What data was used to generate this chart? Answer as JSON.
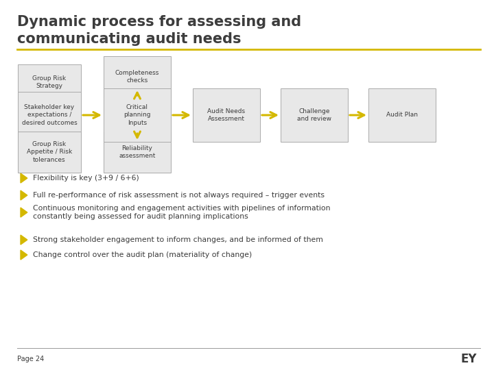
{
  "title_line1": "Dynamic process for assessing and",
  "title_line2": "communicating audit needs",
  "title_color": "#3d3d3d",
  "title_fontsize": 15,
  "title_line_color": "#d4b800",
  "background_color": "#ffffff",
  "box_bg": "#e8e8e8",
  "box_border": "#aaaaaa",
  "arrow_color": "#d4b800",
  "text_color": "#3a3a3a",
  "bullet_color": "#d4b800",
  "left_boxes": [
    {
      "label": "Group Risk\nStrategy"
    },
    {
      "label": "Stakeholder key\nexpectations /\ndesired outcomes"
    },
    {
      "label": "Group Risk\nAppetite / Risk\ntolerances"
    }
  ],
  "top_box_label": "Completeness\nchecks",
  "bottom_box_label": "Reliability\nassessment",
  "main_boxes": [
    {
      "label": "Critical\nplanning\nInputs"
    },
    {
      "label": "Audit Needs\nAssessment"
    },
    {
      "label": "Challenge\nand review"
    },
    {
      "label": "Audit Plan"
    }
  ],
  "bullets": [
    "Flexibility is key (3+9 / 6+6)",
    "Full re-performance of risk assessment is not always required – trigger events",
    "Continuous monitoring and engagement activities with pipelines of information\nconstantly being assessed for audit planning implications",
    "Strong stakeholder engagement to inform changes, and be informed of them",
    "Change control over the audit plan (materiality of change)"
  ],
  "page_label": "Page 24",
  "ey_label": "EY"
}
